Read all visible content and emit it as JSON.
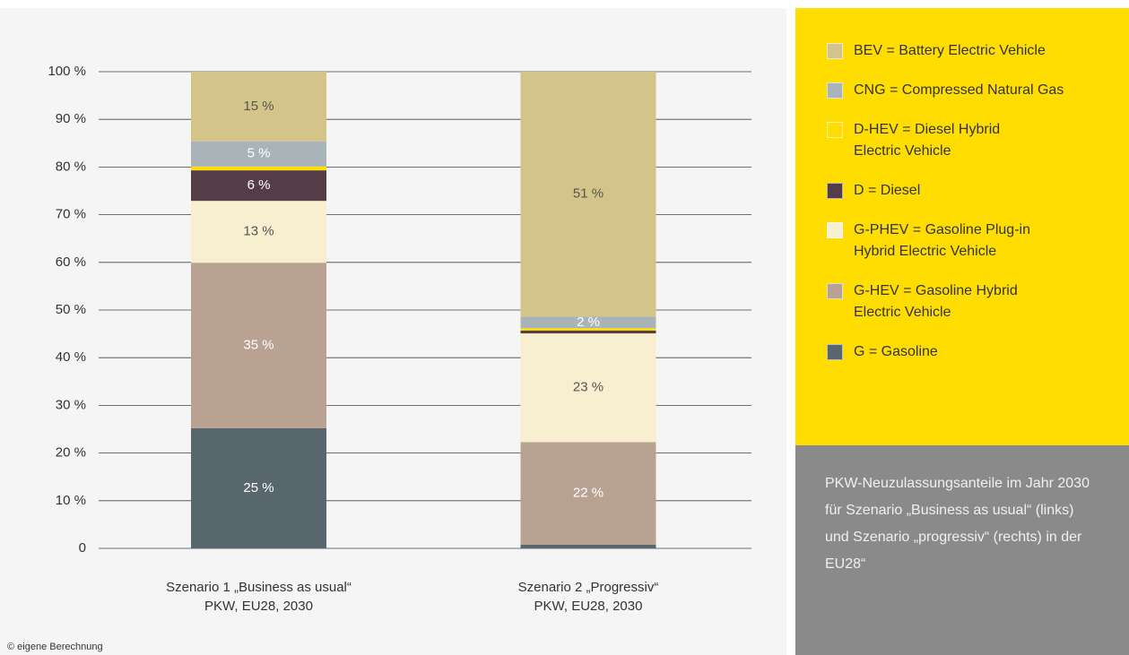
{
  "chart_data": {
    "type": "stacked_bar",
    "categories": [
      [
        "Szenario 1 „Business as usual“",
        "PKW, EU28, 2030"
      ],
      [
        "Szenario 2 „Progressiv“",
        "PKW, EU28, 2030"
      ]
    ],
    "series": [
      {
        "name": "G = Gasoline",
        "color": "#58676d",
        "label_color": "#ffffff",
        "values": [
          25.2,
          0.8
        ],
        "value_labels": [
          "25 %",
          null
        ]
      },
      {
        "name": "G-HEV = Gasoline Hybrid\nElectric Vehicle",
        "color": "#baa292",
        "label_color": "#ffffff",
        "values": [
          34.7,
          21.5
        ],
        "value_labels": [
          "35 %",
          "22 %"
        ]
      },
      {
        "name": "G-PHEV = Gasoline Plug-in\nHybrid Electric Vehicle",
        "color": "#f7efcf",
        "label_color": "#555555",
        "values": [
          13.0,
          22.8
        ],
        "value_labels": [
          "13 %",
          "23 %"
        ]
      },
      {
        "name": "D = Diesel",
        "color": "#553d48",
        "label_color": "#ffffff",
        "values": [
          6.4,
          0.6
        ],
        "value_labels": [
          "6 %",
          null
        ]
      },
      {
        "name": "D-HEV = Diesel Hybrid\nElectric Vehicle",
        "color": "#ffdd00",
        "label_color": "#555555",
        "values": [
          0.8,
          0.5
        ],
        "value_labels": [
          null,
          null
        ]
      },
      {
        "name": "CNG = Compressed Natural Gas",
        "color": "#a9b4b9",
        "label_color": "#ffffff",
        "values": [
          5.3,
          2.4
        ],
        "value_labels": [
          "5 %",
          "2 %"
        ]
      },
      {
        "name": "BEV = Battery Electric Vehicle",
        "color": "#d5c48a",
        "label_color": "#555555",
        "values": [
          14.6,
          51.4
        ],
        "value_labels": [
          "15 %",
          "51 %"
        ]
      }
    ],
    "ylim": [
      0,
      100
    ],
    "yticks": [
      0,
      {
        "value": 10,
        "label": "10 %"
      },
      {
        "value": 20,
        "label": "20 %"
      },
      {
        "value": 30,
        "label": "30 %"
      },
      {
        "value": 40,
        "label": "40 %"
      },
      {
        "value": 50,
        "label": "50 %"
      },
      {
        "value": 60,
        "label": "60 %"
      },
      {
        "value": 70,
        "label": "70 %"
      },
      {
        "value": 80,
        "label": "80 %"
      },
      {
        "value": 90,
        "label": "90 %"
      },
      {
        "value": 100,
        "label": "100 %"
      }
    ],
    "grid": true,
    "caption": "PKW-Neuzulassungsanteile im Jahr 2030 für Szenario „Business as usual“ (links) und Szenario „progressiv“ (rechts) in der EU28“",
    "source": "© eigene Berechnung"
  }
}
